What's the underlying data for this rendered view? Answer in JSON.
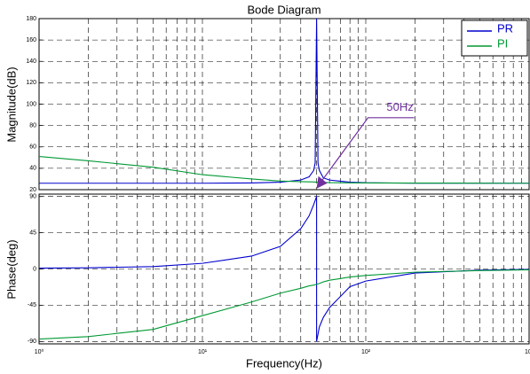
{
  "chart_data": [
    {
      "type": "line",
      "title": "Bode Diagram",
      "ylabel": "Magnitude(dB)",
      "xscale": "log",
      "grid": true,
      "minor_grid": true,
      "xlim": [
        1,
        1000
      ],
      "xticks": [
        1,
        10,
        100,
        1000
      ],
      "show_xtick_labels": false,
      "ylim": [
        20,
        180
      ],
      "yticks": [
        20,
        40,
        60,
        80,
        100,
        120,
        140,
        160,
        180
      ],
      "x": [
        1,
        2,
        5,
        10,
        20,
        30,
        40,
        45,
        48,
        49,
        50,
        51,
        52,
        55,
        60,
        80,
        100,
        200,
        500,
        1000
      ],
      "series": [
        {
          "name": "PR",
          "color": "#0000cd",
          "values": [
            26,
            26,
            26,
            26,
            26.3,
            27,
            29,
            32,
            38,
            45,
            180,
            45,
            38,
            31,
            29,
            27,
            26.5,
            26,
            26,
            26
          ]
        },
        {
          "name": "PI",
          "color": "#009933",
          "values": [
            51,
            47,
            41,
            34,
            30,
            28,
            27.5,
            27.3,
            27.2,
            27.1,
            27,
            27,
            27,
            26.8,
            26.6,
            26.4,
            26.3,
            26.2,
            26.1,
            26
          ]
        }
      ],
      "legend": "upper right",
      "annotation": {
        "text": "50Hz",
        "x": 50,
        "y": 21,
        "color": "#7030a0"
      }
    },
    {
      "type": "line",
      "xlabel": "Frequency(Hz)",
      "ylabel": "Phase(deg)",
      "xscale": "log",
      "grid": true,
      "minor_grid": true,
      "xlim": [
        1,
        1000
      ],
      "xticks": [
        {
          "value": 1,
          "label": "10⁰"
        },
        {
          "value": 10,
          "label": "10¹"
        },
        {
          "value": 100,
          "label": "10²"
        },
        {
          "value": 1000,
          "label": "10³"
        }
      ],
      "ylim": [
        -93,
        93
      ],
      "yticks": [
        -90,
        -45,
        0,
        45,
        90
      ],
      "x": [
        1,
        2,
        5,
        10,
        20,
        30,
        40,
        45,
        48,
        50,
        50,
        52,
        55,
        60,
        80,
        100,
        200,
        500,
        1000
      ],
      "series": [
        {
          "name": "PR",
          "color": "#0000cd",
          "values": [
            1,
            1.5,
            3,
            7,
            16,
            28,
            50,
            66,
            80,
            90,
            -90,
            -72,
            -60,
            -48,
            -22,
            -15,
            -5,
            -1.5,
            -0.5
          ]
        },
        {
          "name": "PI",
          "color": "#009933",
          "values": [
            -87,
            -84,
            -75,
            -58,
            -41,
            -30,
            -24,
            -21,
            -20,
            -19,
            -19,
            -18,
            -16,
            -14,
            -10,
            -8,
            -4,
            -2,
            -1
          ]
        }
      ]
    }
  ]
}
